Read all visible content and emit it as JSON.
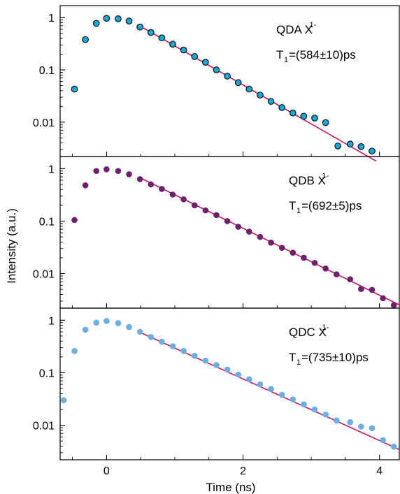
{
  "chart_data": {
    "type": "scatter",
    "xlabel": "Time (ns)",
    "ylabel": "Intensity (a.u.)",
    "xlim": [
      -0.68,
      4.3
    ],
    "x_ticks": [
      0,
      2,
      4
    ],
    "x_tick_labels": [
      "0",
      "2",
      "4"
    ],
    "y_scale": "log",
    "ylim": [
      0.0022,
      1.7
    ],
    "y_ticks": [
      1,
      0.1,
      0.01
    ],
    "y_tick_labels": [
      "1",
      "0.1",
      "0.01"
    ],
    "grid": false,
    "fit_color": "#d0145a",
    "panels": [
      {
        "label": "QDA X",
        "label_sup": "1-",
        "lifetime_prefix": "T",
        "lifetime_sub": "1",
        "lifetime_value": "=(584±10)ps",
        "marker_fill": "#12a8d8",
        "marker_edge": "#000000",
        "ylim": [
          0.0022,
          1.7
        ],
        "points": {
          "x": [
            -0.47,
            -0.31,
            -0.15,
            0.0,
            0.17,
            0.33,
            0.49,
            0.65,
            0.81,
            0.97,
            1.13,
            1.29,
            1.45,
            1.61,
            1.77,
            1.93,
            2.09,
            2.25,
            2.41,
            2.57,
            2.73,
            2.89,
            3.05,
            3.21,
            3.39,
            3.57,
            3.73,
            3.89
          ],
          "y": [
            0.043,
            0.38,
            0.78,
            0.97,
            0.95,
            0.86,
            0.66,
            0.52,
            0.41,
            0.31,
            0.24,
            0.18,
            0.14,
            0.1,
            0.076,
            0.057,
            0.043,
            0.033,
            0.025,
            0.019,
            0.015,
            0.013,
            0.012,
            0.0098,
            0.0035,
            0.0038,
            0.0034,
            0.0028
          ]
        },
        "fit": {
          "x": [
            0.5,
            3.95
          ],
          "y": [
            0.68,
            0.0018
          ]
        }
      },
      {
        "label": "QDB X",
        "label_sup": "1-",
        "lifetime_prefix": "T",
        "lifetime_sub": "1",
        "lifetime_value": "=(692±5)ps",
        "marker_fill": "#6e1f6e",
        "marker_edge": "#6e1f6e",
        "ylim": [
          0.0022,
          1.7
        ],
        "points": {
          "x": [
            -0.47,
            -0.31,
            -0.15,
            0.0,
            0.17,
            0.33,
            0.49,
            0.65,
            0.81,
            0.97,
            1.13,
            1.29,
            1.45,
            1.61,
            1.77,
            1.93,
            2.09,
            2.25,
            2.41,
            2.57,
            2.73,
            2.89,
            3.05,
            3.21,
            3.37,
            3.57,
            3.73,
            3.89,
            4.05,
            4.21
          ],
          "y": [
            0.105,
            0.48,
            0.9,
            0.97,
            0.9,
            0.78,
            0.63,
            0.5,
            0.41,
            0.32,
            0.26,
            0.2,
            0.16,
            0.13,
            0.1,
            0.078,
            0.063,
            0.05,
            0.039,
            0.031,
            0.025,
            0.02,
            0.016,
            0.0125,
            0.0097,
            0.0078,
            0.0051,
            0.0049,
            0.0034,
            0.0025
          ]
        },
        "fit": {
          "x": [
            0.5,
            4.3
          ],
          "y": [
            0.66,
            0.0025
          ]
        }
      },
      {
        "label": "QDC X",
        "label_sup": "1-",
        "lifetime_prefix": "T",
        "lifetime_sub": "1",
        "lifetime_value": "=(735±10)ps",
        "marker_fill": "#6aaee6",
        "marker_edge": "#6aaee6",
        "ylim": [
          0.0022,
          1.7
        ],
        "points": {
          "x": [
            -0.63,
            -0.47,
            -0.31,
            -0.15,
            0.0,
            0.17,
            0.33,
            0.49,
            0.65,
            0.81,
            0.97,
            1.13,
            1.29,
            1.45,
            1.61,
            1.77,
            1.93,
            2.09,
            2.25,
            2.41,
            2.57,
            2.73,
            2.89,
            3.05,
            3.21,
            3.37,
            3.57,
            3.73,
            3.89,
            4.05,
            4.21
          ],
          "y": [
            0.03,
            0.26,
            0.66,
            0.9,
            0.97,
            0.88,
            0.74,
            0.6,
            0.48,
            0.39,
            0.32,
            0.26,
            0.21,
            0.17,
            0.14,
            0.115,
            0.092,
            0.075,
            0.06,
            0.049,
            0.038,
            0.031,
            0.025,
            0.02,
            0.016,
            0.0123,
            0.0114,
            0.0094,
            0.0088,
            0.0052,
            0.0039
          ]
        },
        "fit": {
          "x": [
            0.5,
            4.3
          ],
          "y": [
            0.58,
            0.0034
          ]
        }
      }
    ]
  }
}
